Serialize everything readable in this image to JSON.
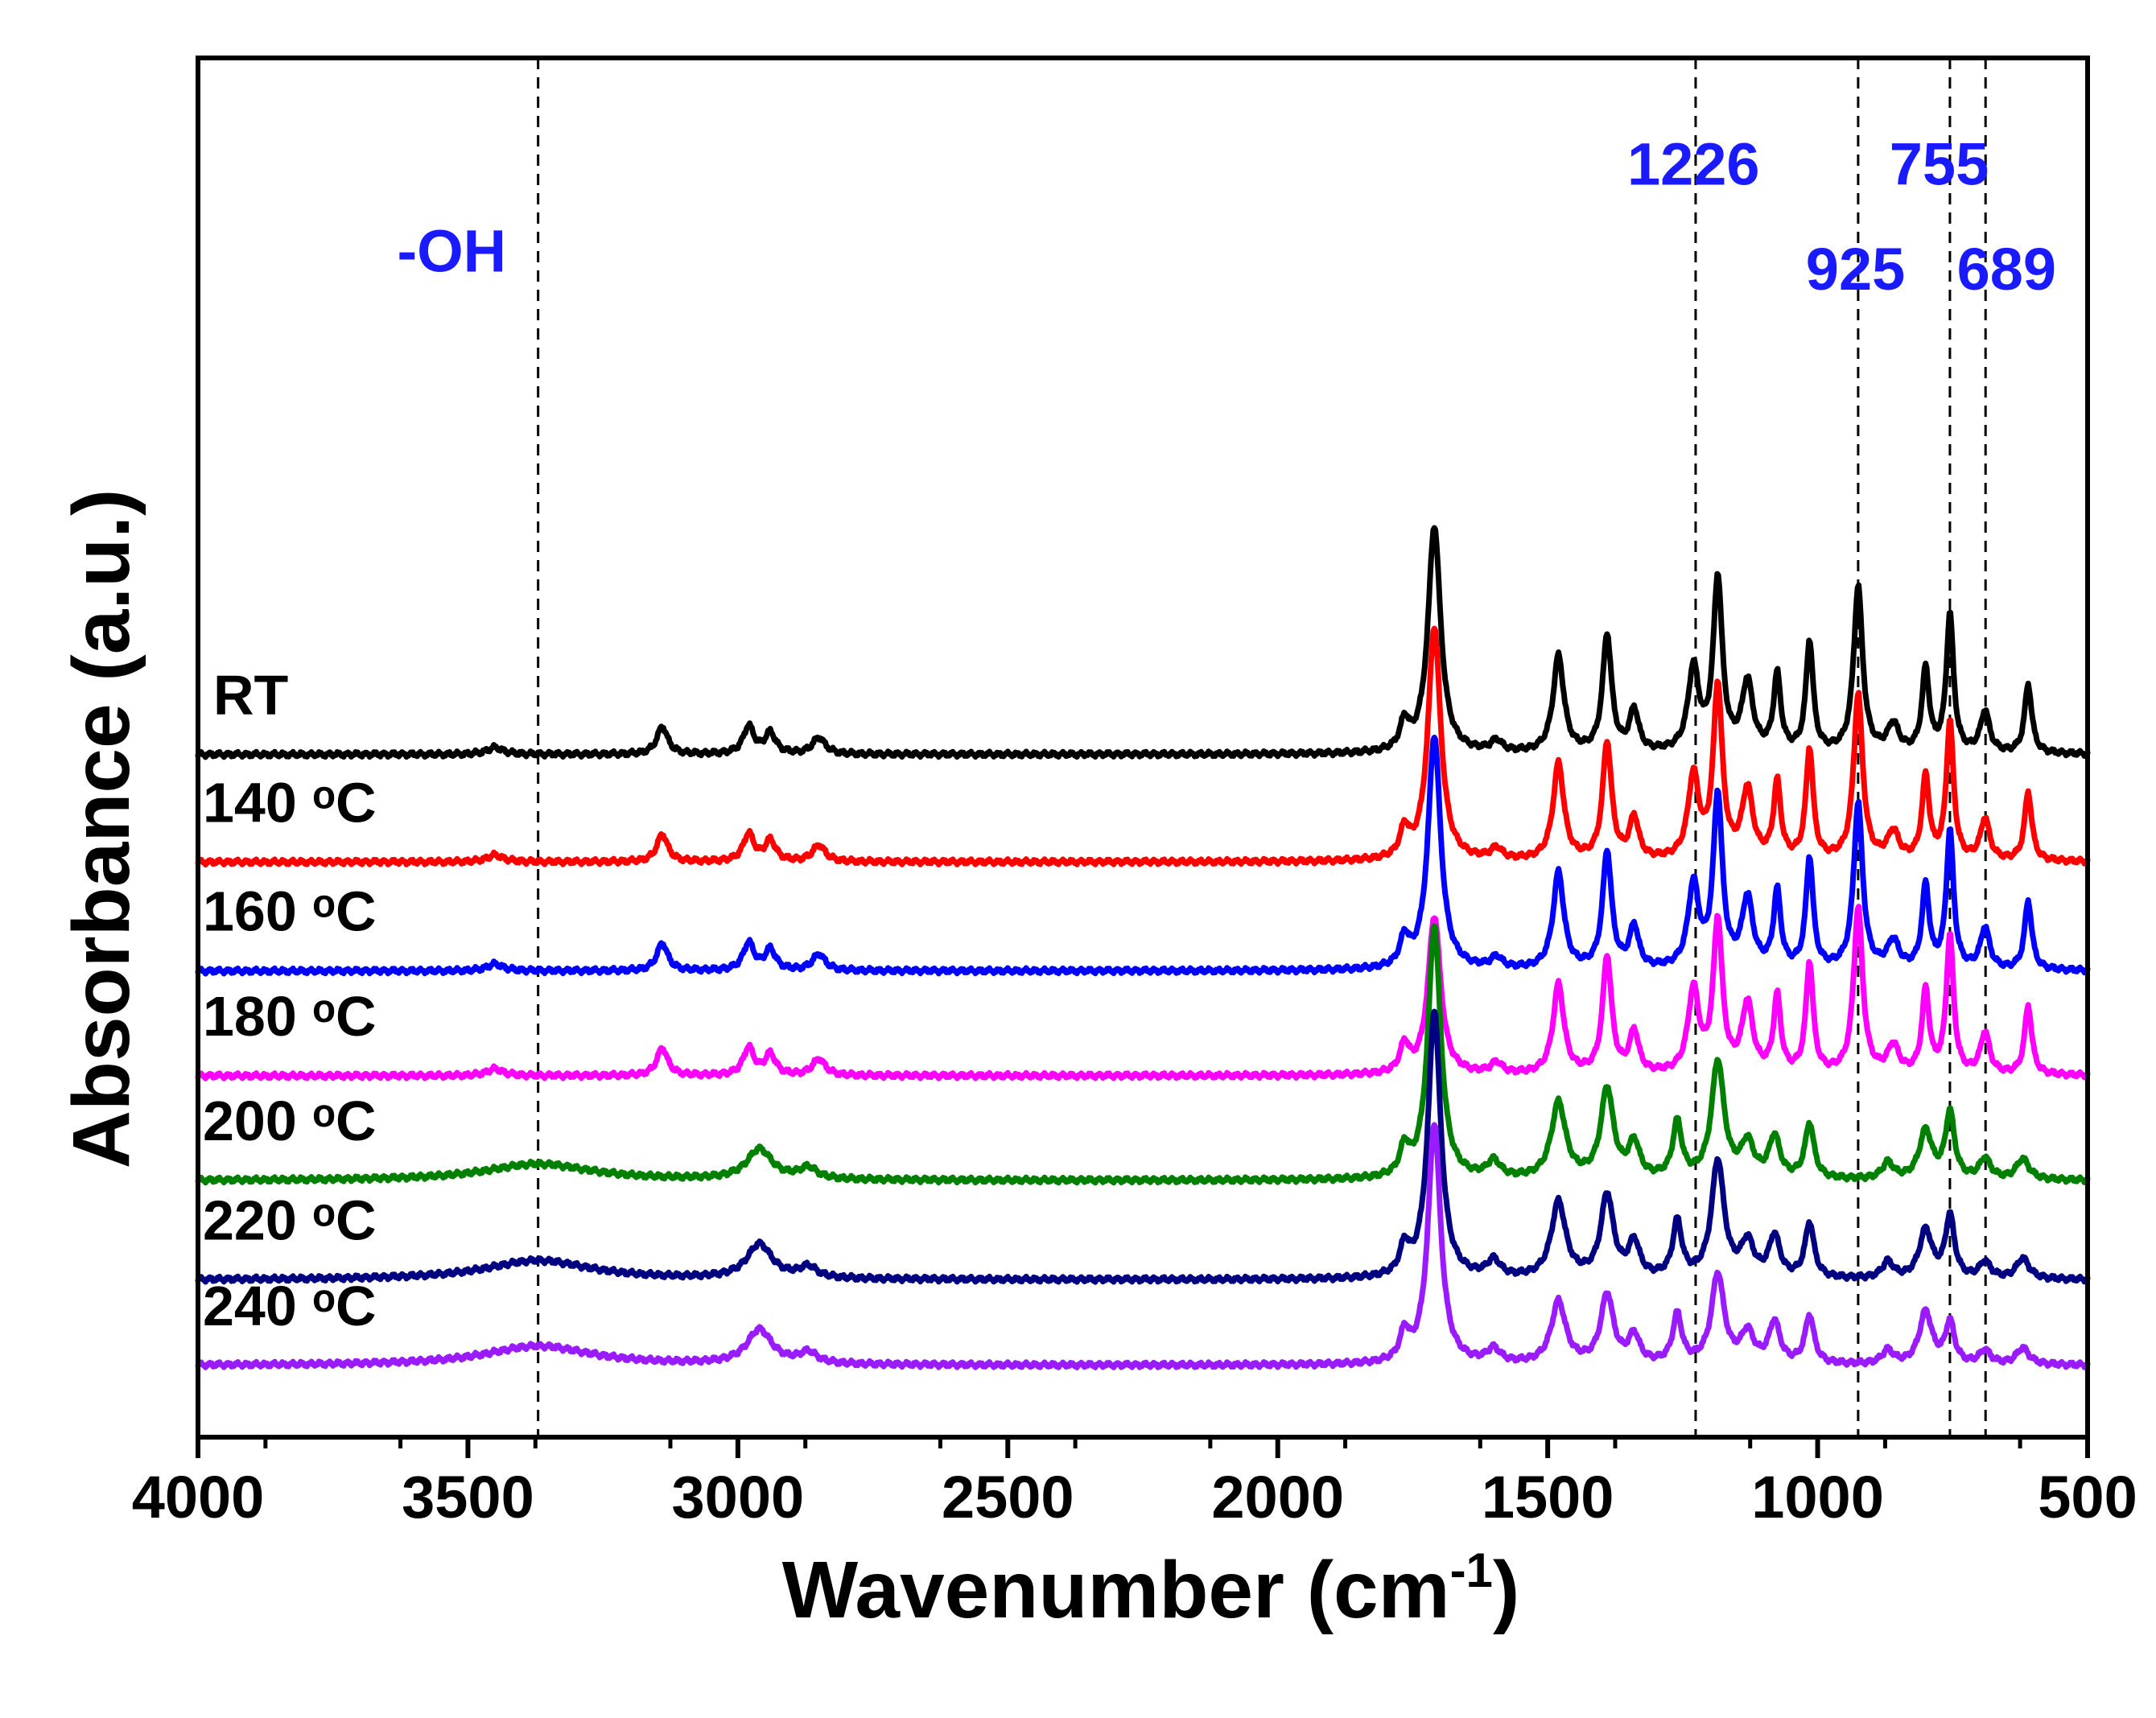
{
  "chart_data": {
    "type": "line",
    "title": "",
    "xlabel": "Wavenumber (cm",
    "xlabel_sup": "-1",
    "xlabel_close": ")",
    "ylabel": "Absorbance (a.u.)",
    "xlim": [
      4000,
      500
    ],
    "x_reversed": true,
    "ylim": [
      0,
      10
    ],
    "y_ticks_shown": false,
    "x_ticks": [
      4000,
      3500,
      3000,
      2500,
      2000,
      1500,
      1000,
      500
    ],
    "x_tick_labels": [
      "4000",
      "3500",
      "3000",
      "2500",
      "2000",
      "1500",
      "1000",
      "500"
    ],
    "reference_lines": [
      3370,
      1226,
      925,
      755,
      689
    ],
    "annotations": [
      {
        "text": "-OH",
        "x": 3530,
        "y": 8.45
      },
      {
        "text": "1226",
        "x": 1230,
        "y": 9.08
      },
      {
        "text": "755",
        "x": 775,
        "y": 9.08
      },
      {
        "text": "925",
        "x": 930,
        "y": 8.32
      },
      {
        "text": "689",
        "x": 650,
        "y": 8.32
      }
    ],
    "series": [
      {
        "name": "RT",
        "label": "RT",
        "color": "#000000",
        "baseline": 4.95,
        "peaks": [
          [
            3450,
            0.05,
            18
          ],
          [
            3140,
            0.2,
            12
          ],
          [
            2980,
            0.2,
            12
          ],
          [
            2940,
            0.15,
            12
          ],
          [
            2850,
            0.12,
            14
          ],
          [
            1765,
            0.2,
            10
          ],
          [
            1710,
            1.65,
            14
          ],
          [
            1595,
            0.08,
            12
          ],
          [
            1480,
            0.7,
            12
          ],
          [
            1390,
            0.85,
            10
          ],
          [
            1340,
            0.3,
            10
          ],
          [
            1230,
            0.6,
            12
          ],
          [
            1185,
            1.25,
            10
          ],
          [
            1130,
            0.5,
            12
          ],
          [
            1075,
            0.55,
            8
          ],
          [
            1015,
            0.8,
            8
          ],
          [
            925,
            1.2,
            10
          ],
          [
            860,
            0.2,
            12
          ],
          [
            800,
            0.6,
            8
          ],
          [
            755,
            1.0,
            8
          ],
          [
            690,
            0.3,
            10
          ],
          [
            610,
            0.5,
            8
          ]
        ]
      },
      {
        "name": "140 °C",
        "label": "140 ᵒC",
        "color": "#ff0000",
        "baseline": 4.17,
        "peaks": [
          [
            3450,
            0.05,
            18
          ],
          [
            3140,
            0.2,
            12
          ],
          [
            2980,
            0.2,
            12
          ],
          [
            2940,
            0.15,
            12
          ],
          [
            2850,
            0.12,
            14
          ],
          [
            1765,
            0.2,
            10
          ],
          [
            1710,
            1.7,
            14
          ],
          [
            1595,
            0.08,
            12
          ],
          [
            1480,
            0.7,
            12
          ],
          [
            1390,
            0.85,
            10
          ],
          [
            1340,
            0.3,
            10
          ],
          [
            1230,
            0.6,
            12
          ],
          [
            1185,
            1.25,
            10
          ],
          [
            1130,
            0.5,
            12
          ],
          [
            1075,
            0.55,
            8
          ],
          [
            1015,
            0.8,
            8
          ],
          [
            925,
            1.2,
            10
          ],
          [
            860,
            0.2,
            12
          ],
          [
            800,
            0.6,
            8
          ],
          [
            755,
            1.0,
            8
          ],
          [
            690,
            0.3,
            10
          ],
          [
            610,
            0.5,
            8
          ]
        ]
      },
      {
        "name": "160 °C",
        "label": "160 ᵒC",
        "color": "#0000ff",
        "baseline": 3.38,
        "peaks": [
          [
            3450,
            0.05,
            18
          ],
          [
            3140,
            0.2,
            12
          ],
          [
            2980,
            0.2,
            12
          ],
          [
            2940,
            0.15,
            12
          ],
          [
            2850,
            0.12,
            14
          ],
          [
            1765,
            0.2,
            10
          ],
          [
            1710,
            1.7,
            14
          ],
          [
            1595,
            0.08,
            12
          ],
          [
            1480,
            0.7,
            12
          ],
          [
            1390,
            0.85,
            10
          ],
          [
            1340,
            0.3,
            10
          ],
          [
            1230,
            0.6,
            12
          ],
          [
            1185,
            1.25,
            10
          ],
          [
            1130,
            0.5,
            12
          ],
          [
            1075,
            0.55,
            8
          ],
          [
            1015,
            0.8,
            8
          ],
          [
            925,
            1.2,
            10
          ],
          [
            860,
            0.2,
            12
          ],
          [
            800,
            0.6,
            8
          ],
          [
            755,
            1.0,
            8
          ],
          [
            690,
            0.3,
            10
          ],
          [
            610,
            0.5,
            8
          ]
        ]
      },
      {
        "name": "180 °C",
        "label": "180 ᵒC",
        "color": "#ff00ff",
        "baseline": 2.62,
        "peaks": [
          [
            3450,
            0.05,
            18
          ],
          [
            3140,
            0.2,
            12
          ],
          [
            2980,
            0.2,
            12
          ],
          [
            2940,
            0.15,
            12
          ],
          [
            2850,
            0.12,
            14
          ],
          [
            1765,
            0.2,
            10
          ],
          [
            1710,
            1.15,
            14
          ],
          [
            1595,
            0.08,
            12
          ],
          [
            1480,
            0.65,
            12
          ],
          [
            1390,
            0.85,
            10
          ],
          [
            1340,
            0.3,
            10
          ],
          [
            1230,
            0.6,
            12
          ],
          [
            1185,
            1.1,
            10
          ],
          [
            1130,
            0.5,
            12
          ],
          [
            1075,
            0.55,
            8
          ],
          [
            1015,
            0.8,
            8
          ],
          [
            925,
            1.2,
            10
          ],
          [
            860,
            0.2,
            12
          ],
          [
            800,
            0.6,
            8
          ],
          [
            755,
            1.0,
            8
          ],
          [
            690,
            0.3,
            10
          ],
          [
            610,
            0.5,
            8
          ]
        ]
      },
      {
        "name": "200 °C",
        "label": "200 ᵒC",
        "color": "#008000",
        "baseline": 1.86,
        "peaks": [
          [
            3370,
            0.12,
            120
          ],
          [
            2960,
            0.22,
            28
          ],
          [
            2870,
            0.08,
            20
          ],
          [
            1765,
            0.2,
            10
          ],
          [
            1710,
            1.85,
            14
          ],
          [
            1600,
            0.12,
            14
          ],
          [
            1480,
            0.55,
            16
          ],
          [
            1390,
            0.65,
            14
          ],
          [
            1340,
            0.25,
            12
          ],
          [
            1260,
            0.4,
            10
          ],
          [
            1185,
            0.85,
            14
          ],
          [
            1130,
            0.25,
            14
          ],
          [
            1080,
            0.3,
            12
          ],
          [
            1015,
            0.4,
            10
          ],
          [
            870,
            0.12,
            12
          ],
          [
            800,
            0.35,
            14
          ],
          [
            755,
            0.48,
            10
          ],
          [
            690,
            0.15,
            12
          ],
          [
            620,
            0.15,
            14
          ]
        ]
      },
      {
        "name": "220 °C",
        "label": "220 ᵒC",
        "color": "#000080",
        "baseline": 1.14,
        "peaks": [
          [
            3370,
            0.14,
            120
          ],
          [
            2960,
            0.25,
            28
          ],
          [
            2870,
            0.08,
            20
          ],
          [
            1765,
            0.2,
            10
          ],
          [
            1710,
            1.95,
            14
          ],
          [
            1600,
            0.12,
            14
          ],
          [
            1480,
            0.55,
            16
          ],
          [
            1390,
            0.6,
            14
          ],
          [
            1340,
            0.25,
            12
          ],
          [
            1260,
            0.4,
            10
          ],
          [
            1185,
            0.85,
            14
          ],
          [
            1130,
            0.25,
            14
          ],
          [
            1080,
            0.3,
            12
          ],
          [
            1015,
            0.4,
            10
          ],
          [
            870,
            0.12,
            12
          ],
          [
            800,
            0.35,
            14
          ],
          [
            755,
            0.45,
            10
          ],
          [
            690,
            0.12,
            12
          ],
          [
            620,
            0.15,
            14
          ]
        ]
      },
      {
        "name": "240 °C",
        "label": "240 ᵒC",
        "color": "#9b1bff",
        "baseline": 0.52,
        "peaks": [
          [
            3370,
            0.14,
            120
          ],
          [
            2960,
            0.25,
            28
          ],
          [
            2870,
            0.08,
            20
          ],
          [
            1765,
            0.2,
            10
          ],
          [
            1710,
            1.75,
            14
          ],
          [
            1600,
            0.1,
            14
          ],
          [
            1480,
            0.45,
            16
          ],
          [
            1390,
            0.5,
            14
          ],
          [
            1340,
            0.2,
            12
          ],
          [
            1260,
            0.35,
            10
          ],
          [
            1185,
            0.65,
            14
          ],
          [
            1130,
            0.22,
            14
          ],
          [
            1080,
            0.3,
            12
          ],
          [
            1015,
            0.35,
            10
          ],
          [
            870,
            0.1,
            12
          ],
          [
            800,
            0.38,
            14
          ],
          [
            755,
            0.3,
            10
          ],
          [
            690,
            0.1,
            12
          ],
          [
            620,
            0.12,
            14
          ]
        ]
      }
    ]
  }
}
